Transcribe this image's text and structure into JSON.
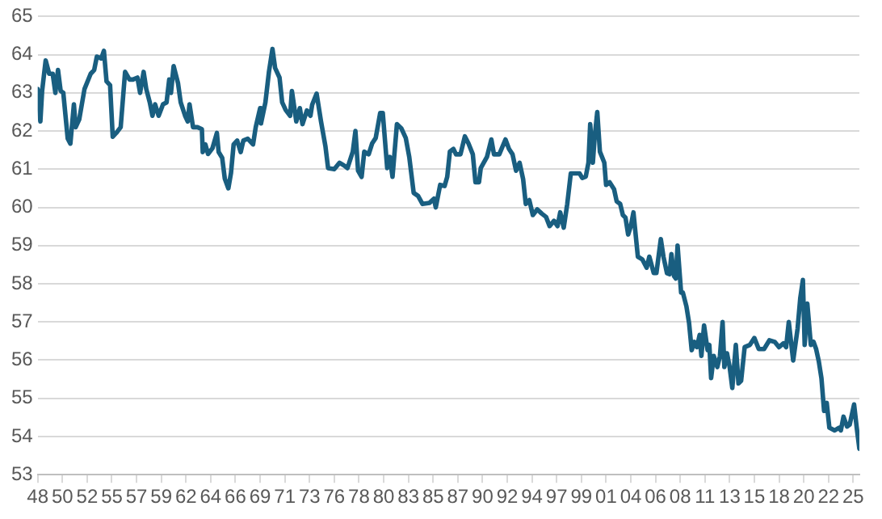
{
  "chart_data": {
    "type": "line",
    "color": "#195e80",
    "grid": "y",
    "legend": false,
    "marker": "none",
    "line_style": "solid",
    "x": [
      "1948-01",
      "1948-04",
      "1948-06",
      "1948-10",
      "1949-02",
      "1949-06",
      "1949-09",
      "1949-12",
      "1950-03",
      "1950-06",
      "1950-11",
      "1951-02",
      "1951-06",
      "1951-08",
      "1951-12",
      "1952-06",
      "1953-01",
      "1953-05",
      "1953-08",
      "1954-01",
      "1954-04",
      "1954-07",
      "1954-11",
      "1955-02",
      "1955-06",
      "1955-11",
      "1956-04",
      "1956-09",
      "1957-01",
      "1957-06",
      "1957-09",
      "1958-01",
      "1958-04",
      "1958-08",
      "1958-11",
      "1959-02",
      "1959-06",
      "1959-11",
      "1960-03",
      "1960-06",
      "1960-08",
      "1960-11",
      "1961-04",
      "1961-07",
      "1961-12",
      "1962-03",
      "1962-05",
      "1962-09",
      "1963-02",
      "1963-07",
      "1963-08",
      "1963-11",
      "1964-02",
      "1964-07",
      "1964-12",
      "1965-02",
      "1965-06",
      "1965-09",
      "1966-01",
      "1966-04",
      "1966-07",
      "1966-11",
      "1967-03",
      "1967-06",
      "1967-11",
      "1968-05",
      "1968-08",
      "1969-01",
      "1969-02",
      "1969-07",
      "1969-11",
      "1970-03",
      "1970-06",
      "1970-11",
      "1971-02",
      "1971-06",
      "1971-11",
      "1972-01",
      "1972-06",
      "1972-10",
      "1973-01",
      "1973-06",
      "1973-10",
      "1973-12",
      "1974-05",
      "1974-10",
      "1975-03",
      "1975-06",
      "1976-01",
      "1976-07",
      "1976-12",
      "1977-04",
      "1977-10",
      "1978-01",
      "1978-04",
      "1978-08",
      "1978-11",
      "1979-04",
      "1979-08",
      "1979-12",
      "1980-05",
      "1980-08",
      "1981-01",
      "1981-04",
      "1981-07",
      "1981-12",
      "1982-05",
      "1982-10",
      "1983-02",
      "1983-07",
      "1983-12",
      "1984-05",
      "1985-01",
      "1985-06",
      "1985-08",
      "1986-01",
      "1986-06",
      "1986-09",
      "1986-12",
      "1987-04",
      "1987-07",
      "1987-12",
      "1988-05",
      "1988-09",
      "1989-02",
      "1989-05",
      "1989-09",
      "1989-11",
      "1990-06",
      "1990-11",
      "1991-02",
      "1991-08",
      "1992-03",
      "1992-07",
      "1992-11",
      "1993-03",
      "1993-07",
      "1993-11",
      "1994-02",
      "1994-06",
      "1994-10",
      "1995-03",
      "1995-08",
      "1996-01",
      "1996-05",
      "1996-10",
      "1997-02",
      "1997-05",
      "1997-09",
      "1998-01",
      "1998-05",
      "1998-10",
      "1999-03",
      "1999-06",
      "1999-10",
      "2000-01",
      "2000-03",
      "2000-06",
      "2000-08",
      "2000-11",
      "2001-02",
      "2001-07",
      "2001-09",
      "2002-01",
      "2002-06",
      "2002-09",
      "2003-01",
      "2003-04",
      "2003-07",
      "2003-10",
      "2004-01",
      "2004-04",
      "2004-09",
      "2005-02",
      "2005-07",
      "2005-10",
      "2006-03",
      "2006-06",
      "2006-11",
      "2007-02",
      "2007-06",
      "2007-09",
      "2007-11",
      "2008-02",
      "2008-04",
      "2008-06",
      "2008-10",
      "2008-12",
      "2009-04",
      "2009-07",
      "2009-10",
      "2010-01",
      "2010-04",
      "2010-07",
      "2010-09",
      "2010-12",
      "2011-04",
      "2011-06",
      "2011-08",
      "2011-11",
      "2012-03",
      "2012-06",
      "2012-09",
      "2012-11",
      "2013-02",
      "2013-05",
      "2013-08",
      "2013-12",
      "2014-03",
      "2014-06",
      "2014-10",
      "2015-04",
      "2015-09",
      "2016-02",
      "2016-08",
      "2017-02",
      "2017-08",
      "2018-01",
      "2018-06",
      "2018-09",
      "2018-12",
      "2019-05",
      "2019-10",
      "2020-01",
      "2020-04",
      "2020-06",
      "2020-09",
      "2021-01",
      "2021-04",
      "2021-07",
      "2021-10",
      "2022-01",
      "2022-04",
      "2022-07",
      "2022-10",
      "2023-04",
      "2023-09",
      "2023-11",
      "2024-02",
      "2024-06",
      "2024-09",
      "2025-02",
      "2025-05",
      "2025-08"
    ],
    "values": [
      63.1,
      62.25,
      63.05,
      63.85,
      63.5,
      63.5,
      63.0,
      63.6,
      63.05,
      63.0,
      61.8,
      61.67,
      62.7,
      62.1,
      62.3,
      63.1,
      63.5,
      63.6,
      63.95,
      63.9,
      64.1,
      63.3,
      63.2,
      61.85,
      61.95,
      62.1,
      63.55,
      63.35,
      63.35,
      63.4,
      63.0,
      63.55,
      63.1,
      62.75,
      62.4,
      62.7,
      62.4,
      62.7,
      62.75,
      63.35,
      63.0,
      63.7,
      63.25,
      62.75,
      62.4,
      62.25,
      62.7,
      62.1,
      62.1,
      62.05,
      61.45,
      61.65,
      61.4,
      61.55,
      61.95,
      61.45,
      61.3,
      60.75,
      60.5,
      60.9,
      61.65,
      61.75,
      61.45,
      61.75,
      61.8,
      61.65,
      62.1,
      62.6,
      62.2,
      62.75,
      63.55,
      64.15,
      63.65,
      63.4,
      62.75,
      62.55,
      62.4,
      63.05,
      62.25,
      62.6,
      62.18,
      62.54,
      62.4,
      62.69,
      62.98,
      62.25,
      61.6,
      61.03,
      61.0,
      61.17,
      61.1,
      61.03,
      61.46,
      62.0,
      60.96,
      60.8,
      61.46,
      61.39,
      61.68,
      61.82,
      62.47,
      62.47,
      61.03,
      61.32,
      60.8,
      62.18,
      62.07,
      61.82,
      61.32,
      60.38,
      60.3,
      60.09,
      60.12,
      60.23,
      60.0,
      60.59,
      60.56,
      60.8,
      61.46,
      61.53,
      61.39,
      61.39,
      61.86,
      61.68,
      61.39,
      60.66,
      60.66,
      61.03,
      61.32,
      61.78,
      61.39,
      61.39,
      61.78,
      61.53,
      61.39,
      60.96,
      61.17,
      60.74,
      60.09,
      60.19,
      59.8,
      59.95,
      59.84,
      59.75,
      59.51,
      59.65,
      59.51,
      59.87,
      59.47,
      60.09,
      60.89,
      60.89,
      60.89,
      60.77,
      60.81,
      61.17,
      62.18,
      61.17,
      61.82,
      62.5,
      61.46,
      61.17,
      60.59,
      60.66,
      60.48,
      60.16,
      60.09,
      59.8,
      59.73,
      59.29,
      59.51,
      59.87,
      58.71,
      58.64,
      58.42,
      58.71,
      58.28,
      58.28,
      59.17,
      58.71,
      58.28,
      58.25,
      58.78,
      58.2,
      58.14,
      59.0,
      57.77,
      57.77,
      57.41,
      56.98,
      56.26,
      56.48,
      56.34,
      56.66,
      56.11,
      56.91,
      56.26,
      56.4,
      55.53,
      56.11,
      55.82,
      56.11,
      57.0,
      55.82,
      56.18,
      55.82,
      55.27,
      56.4,
      55.39,
      55.46,
      56.34,
      56.4,
      56.58,
      56.29,
      56.29,
      56.52,
      56.48,
      56.34,
      56.44,
      56.34,
      57.0,
      55.99,
      56.83,
      57.62,
      58.1,
      56.4,
      57.48,
      56.4,
      56.48,
      56.29,
      55.97,
      55.53,
      54.67,
      54.88,
      54.23,
      54.16,
      54.23,
      54.16,
      54.52,
      54.26,
      54.31,
      54.84,
      54.23,
      53.68
    ],
    "xlim": [
      "1948-01",
      "2025-08"
    ],
    "xticks": [
      {
        "value": "1948-01",
        "label": "48"
      },
      {
        "value": "1950-05",
        "label": "50"
      },
      {
        "value": "1952-09",
        "label": "52"
      },
      {
        "value": "1955-01",
        "label": "55"
      },
      {
        "value": "1957-05",
        "label": "57"
      },
      {
        "value": "1959-09",
        "label": "59"
      },
      {
        "value": "1962-01",
        "label": "62"
      },
      {
        "value": "1964-05",
        "label": "64"
      },
      {
        "value": "1966-09",
        "label": "66"
      },
      {
        "value": "1969-01",
        "label": "69"
      },
      {
        "value": "1971-05",
        "label": "71"
      },
      {
        "value": "1973-09",
        "label": "73"
      },
      {
        "value": "1976-01",
        "label": "76"
      },
      {
        "value": "1978-05",
        "label": "78"
      },
      {
        "value": "1980-09",
        "label": "80"
      },
      {
        "value": "1983-01",
        "label": "83"
      },
      {
        "value": "1985-05",
        "label": "85"
      },
      {
        "value": "1987-09",
        "label": "87"
      },
      {
        "value": "1990-01",
        "label": "90"
      },
      {
        "value": "1992-05",
        "label": "92"
      },
      {
        "value": "1994-09",
        "label": "94"
      },
      {
        "value": "1997-01",
        "label": "97"
      },
      {
        "value": "1999-05",
        "label": "99"
      },
      {
        "value": "2001-09",
        "label": "01"
      },
      {
        "value": "2004-01",
        "label": "04"
      },
      {
        "value": "2006-05",
        "label": "06"
      },
      {
        "value": "2008-09",
        "label": "08"
      },
      {
        "value": "2011-01",
        "label": "11"
      },
      {
        "value": "2013-05",
        "label": "13"
      },
      {
        "value": "2015-09",
        "label": "15"
      },
      {
        "value": "2018-01",
        "label": "18"
      },
      {
        "value": "2020-05",
        "label": "20"
      },
      {
        "value": "2022-09",
        "label": "22"
      },
      {
        "value": "2025-01",
        "label": "25"
      }
    ],
    "ylim": [
      53,
      65
    ],
    "yticks": [
      53,
      54,
      55,
      56,
      57,
      58,
      59,
      60,
      61,
      62,
      63,
      64,
      65
    ]
  }
}
